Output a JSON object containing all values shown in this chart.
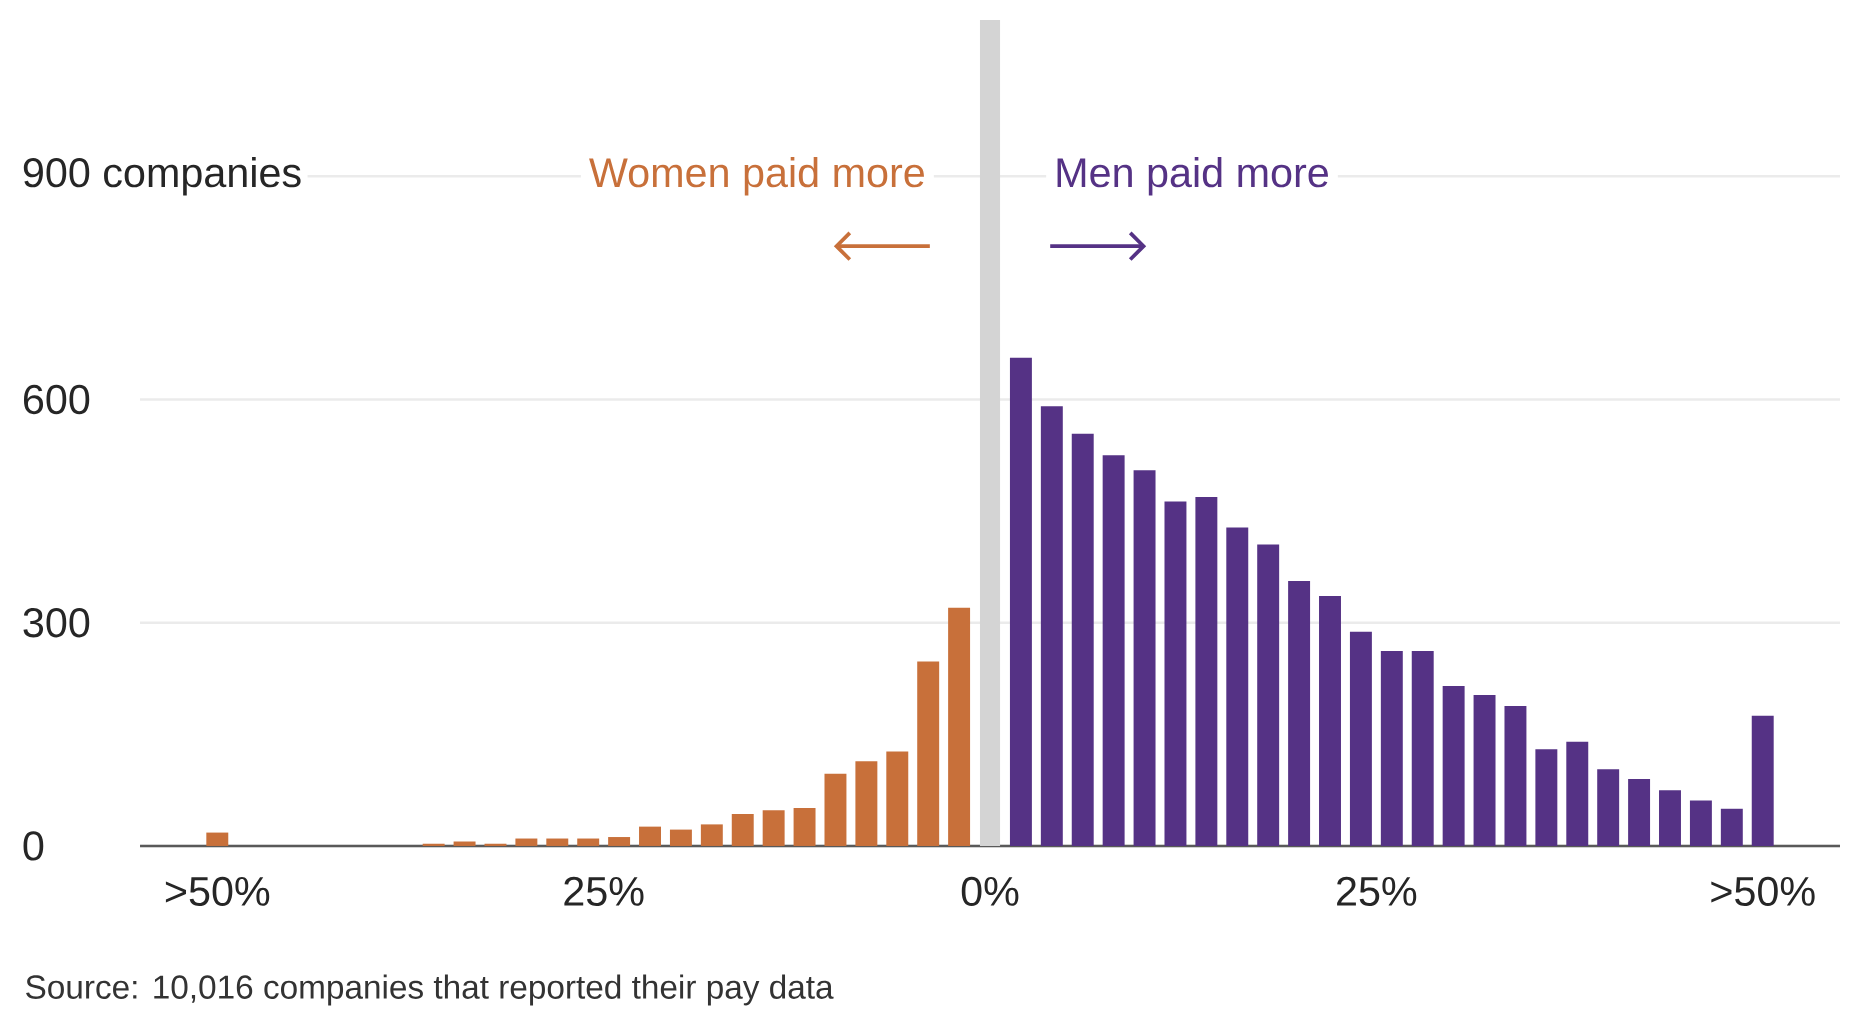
{
  "chart_data": {
    "type": "bar",
    "annotations": [
      "Women paid more",
      "Men paid more",
      "Source: 10,016 companies that reported their pay data"
    ],
    "x": [
      -50,
      -48,
      -46,
      -44,
      -42,
      -40,
      -38,
      -36,
      -34,
      -32,
      -30,
      -28,
      -26,
      -24,
      -22,
      -20,
      -18,
      -16,
      -14,
      -12,
      -10,
      -8,
      -6,
      -4,
      -2,
      2,
      4,
      6,
      8,
      10,
      12,
      14,
      16,
      18,
      20,
      22,
      24,
      26,
      28,
      30,
      32,
      34,
      36,
      38,
      40,
      42,
      44,
      46,
      48,
      50
    ],
    "values": [
      18,
      0,
      0,
      0,
      0,
      0,
      0,
      3,
      6,
      3,
      10,
      10,
      10,
      12,
      26,
      22,
      29,
      43,
      48,
      51,
      97,
      114,
      127,
      248,
      320,
      656,
      591,
      554,
      525,
      505,
      463,
      469,
      428,
      405,
      356,
      336,
      288,
      262,
      262,
      215,
      203,
      188,
      130,
      140,
      103,
      90,
      75,
      61,
      50,
      175
    ],
    "colors": [
      "#c8703a",
      "#c8703a",
      "#c8703a",
      "#c8703a",
      "#c8703a",
      "#c8703a",
      "#c8703a",
      "#c8703a",
      "#c8703a",
      "#c8703a",
      "#c8703a",
      "#c8703a",
      "#c8703a",
      "#c8703a",
      "#c8703a",
      "#c8703a",
      "#c8703a",
      "#c8703a",
      "#c8703a",
      "#c8703a",
      "#c8703a",
      "#c8703a",
      "#c8703a",
      "#c8703a",
      "#c8703a",
      "#553285",
      "#553285",
      "#553285",
      "#553285",
      "#553285",
      "#553285",
      "#553285",
      "#553285",
      "#553285",
      "#553285",
      "#553285",
      "#553285",
      "#553285",
      "#553285",
      "#553285",
      "#553285",
      "#553285",
      "#553285",
      "#553285",
      "#553285",
      "#553285",
      "#553285",
      "#553285",
      "#553285",
      "#553285"
    ],
    "xlim": [
      -55,
      55
    ],
    "xticks": [
      {
        "value": -50,
        "label": ">50%"
      },
      {
        "value": -25,
        "label": "25%"
      },
      {
        "value": 0,
        "label": "0%"
      },
      {
        "value": 25,
        "label": "25%"
      },
      {
        "value": 50,
        "label": ">50%"
      }
    ],
    "ylim": [
      0,
      1110
    ],
    "yticks": [
      0,
      300,
      600,
      {
        "value": 900,
        "label": "900 companies"
      }
    ],
    "grid": "y",
    "bands": [
      {
        "axis": "x",
        "from": -0.65,
        "to": 0.65,
        "color": "#d4d4d4"
      }
    ]
  }
}
